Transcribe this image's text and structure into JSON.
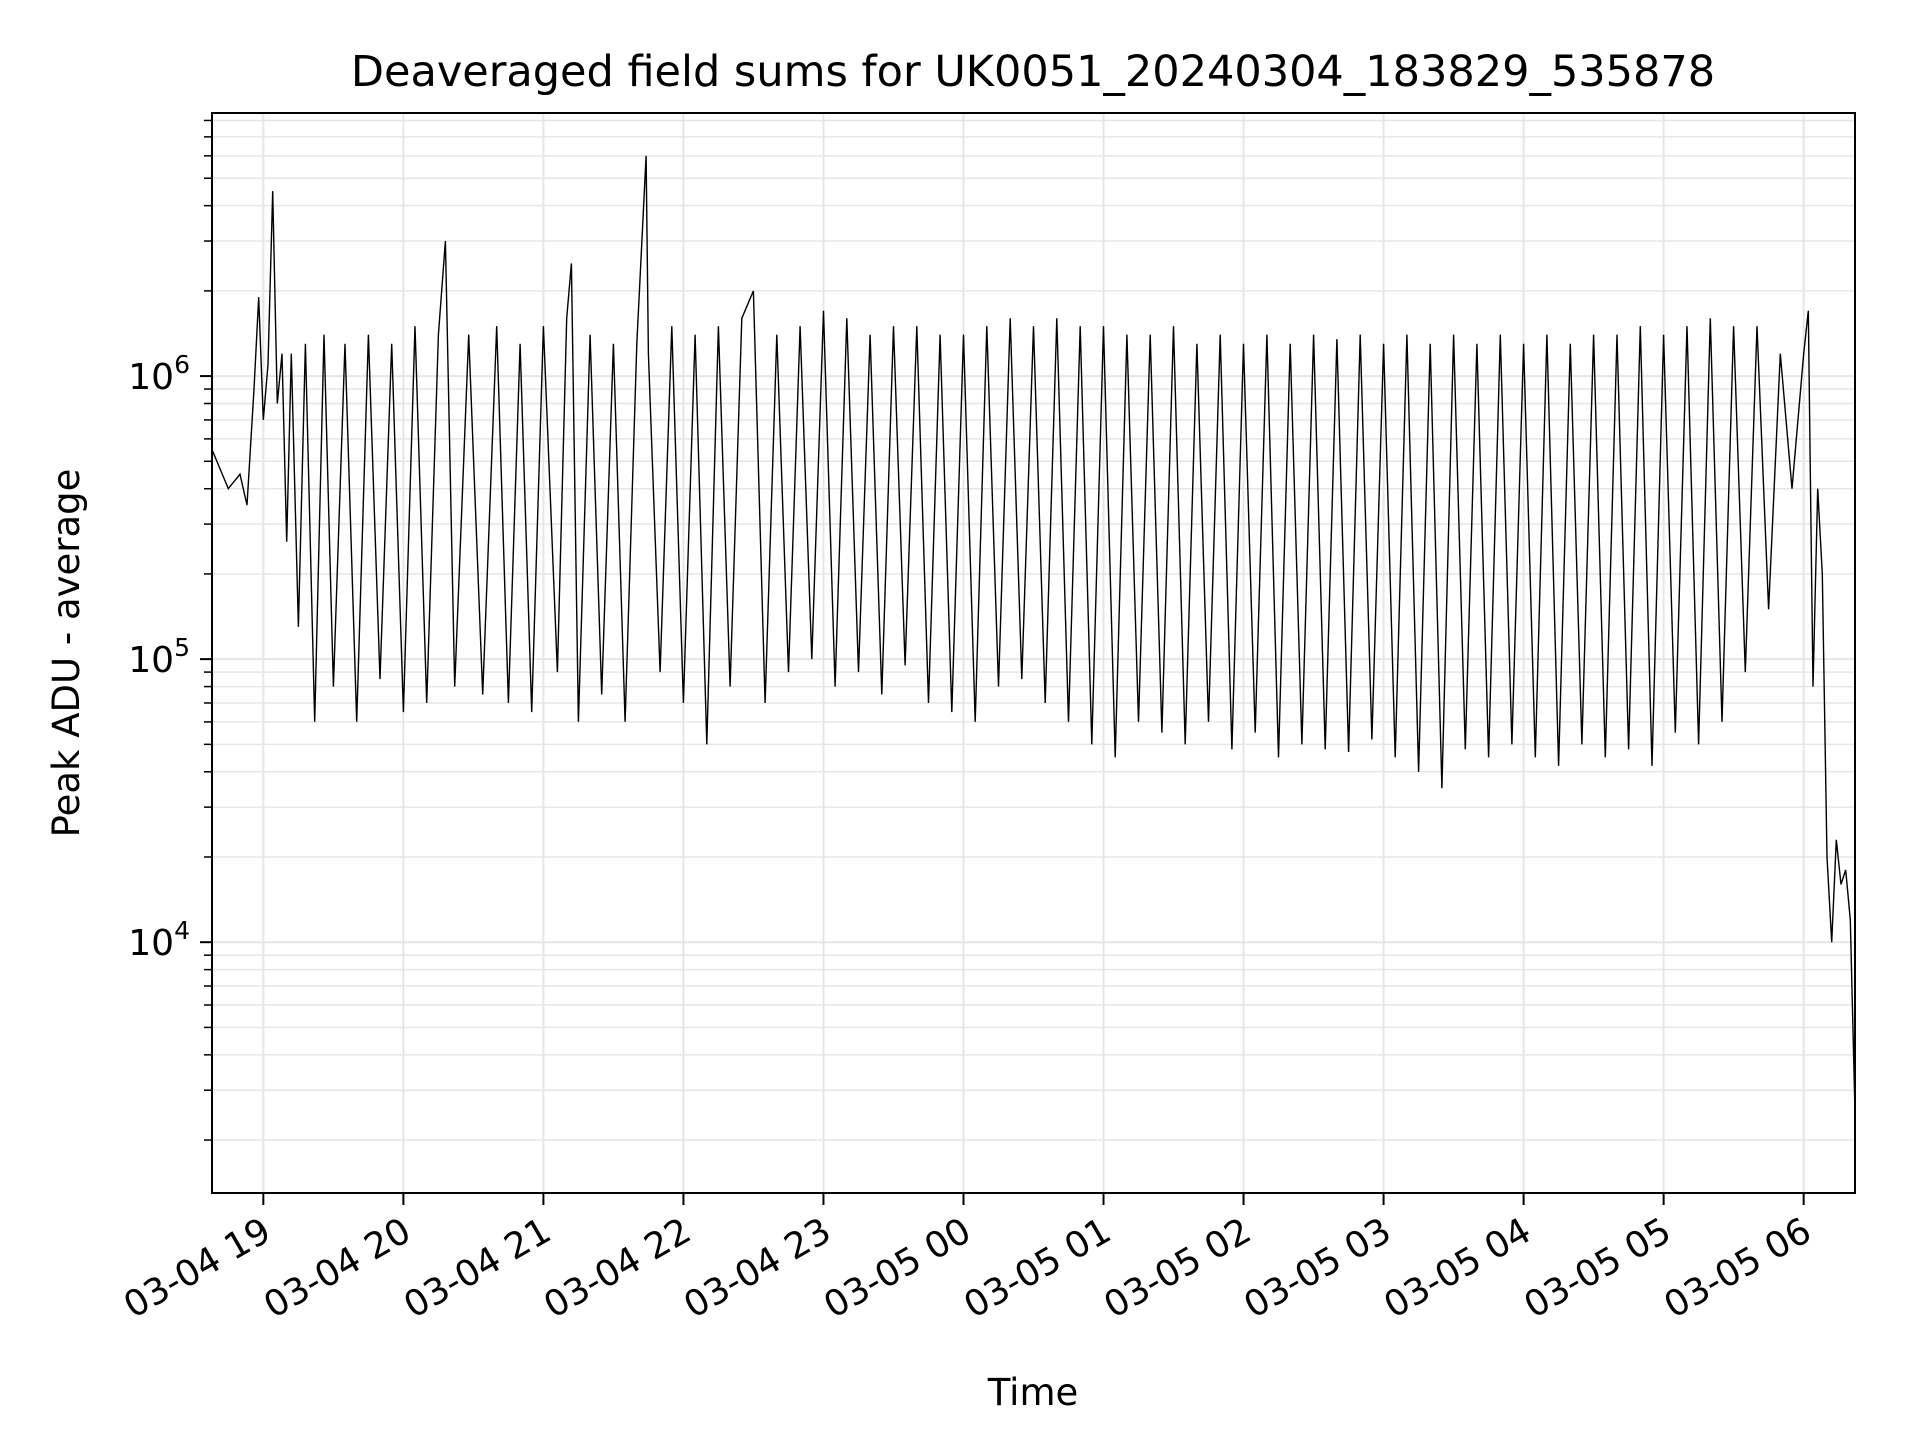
{
  "chart_data": {
    "type": "line",
    "title": "Deaveraged field sums for UK0051_20240304_183829_535878",
    "xlabel": "Time",
    "ylabel": "Peak ADU - average",
    "y_scale": "log",
    "ylim": [
      1300,
      8500000
    ],
    "xlim": [
      "2024-03-04 18:38",
      "2024-03-05 06:22"
    ],
    "grid": true,
    "legend": "none",
    "line_color": "#000000",
    "grid_color": "#e6e6e6",
    "x_ticks": [
      {
        "t": "2024-03-04 19:00",
        "label": "03-04 19"
      },
      {
        "t": "2024-03-04 20:00",
        "label": "03-04 20"
      },
      {
        "t": "2024-03-04 21:00",
        "label": "03-04 21"
      },
      {
        "t": "2024-03-04 22:00",
        "label": "03-04 22"
      },
      {
        "t": "2024-03-04 23:00",
        "label": "03-04 23"
      },
      {
        "t": "2024-03-05 00:00",
        "label": "03-05 00"
      },
      {
        "t": "2024-03-05 01:00",
        "label": "03-05 01"
      },
      {
        "t": "2024-03-05 02:00",
        "label": "03-05 02"
      },
      {
        "t": "2024-03-05 03:00",
        "label": "03-05 03"
      },
      {
        "t": "2024-03-05 04:00",
        "label": "03-05 04"
      },
      {
        "t": "2024-03-05 05:00",
        "label": "03-05 05"
      },
      {
        "t": "2024-03-05 06:00",
        "label": "03-05 06"
      }
    ],
    "y_ticks": [
      {
        "value": 10000,
        "base": "10",
        "exp": "4"
      },
      {
        "value": 100000,
        "base": "10",
        "exp": "5"
      },
      {
        "value": 1000000,
        "base": "10",
        "exp": "6"
      }
    ],
    "series": [
      {
        "x": [
          "2024-03-04 18:38",
          "2024-03-04 18:45",
          "2024-03-04 18:50",
          "2024-03-04 18:53",
          "2024-03-04 18:56",
          "2024-03-04 18:58",
          "2024-03-04 19:00",
          "2024-03-04 19:02",
          "2024-03-04 19:04",
          "2024-03-04 19:06",
          "2024-03-04 19:08",
          "2024-03-04 19:10",
          "2024-03-04 19:12",
          "2024-03-04 19:15",
          "2024-03-04 19:18",
          "2024-03-04 19:22",
          "2024-03-04 19:26",
          "2024-03-04 19:30",
          "2024-03-04 19:35",
          "2024-03-04 19:40",
          "2024-03-04 19:45",
          "2024-03-04 19:50",
          "2024-03-04 19:55",
          "2024-03-04 20:00",
          "2024-03-04 20:05",
          "2024-03-04 20:10",
          "2024-03-04 20:15",
          "2024-03-04 20:18",
          "2024-03-04 20:22",
          "2024-03-04 20:28",
          "2024-03-04 20:34",
          "2024-03-04 20:40",
          "2024-03-04 20:45",
          "2024-03-04 20:50",
          "2024-03-04 20:55",
          "2024-03-04 21:00",
          "2024-03-04 21:06",
          "2024-03-04 21:10",
          "2024-03-04 21:12",
          "2024-03-04 21:15",
          "2024-03-04 21:20",
          "2024-03-04 21:25",
          "2024-03-04 21:30",
          "2024-03-04 21:35",
          "2024-03-04 21:40",
          "2024-03-04 21:44",
          "2024-03-04 21:45",
          "2024-03-04 21:50",
          "2024-03-04 21:55",
          "2024-03-04 22:00",
          "2024-03-04 22:05",
          "2024-03-04 22:10",
          "2024-03-04 22:15",
          "2024-03-04 22:20",
          "2024-03-04 22:25",
          "2024-03-04 22:30",
          "2024-03-04 22:35",
          "2024-03-04 22:40",
          "2024-03-04 22:45",
          "2024-03-04 22:50",
          "2024-03-04 22:55",
          "2024-03-04 23:00",
          "2024-03-04 23:05",
          "2024-03-04 23:10",
          "2024-03-04 23:15",
          "2024-03-04 23:20",
          "2024-03-04 23:25",
          "2024-03-04 23:30",
          "2024-03-04 23:35",
          "2024-03-04 23:40",
          "2024-03-04 23:45",
          "2024-03-04 23:50",
          "2024-03-04 23:55",
          "2024-03-05 00:00",
          "2024-03-05 00:05",
          "2024-03-05 00:10",
          "2024-03-05 00:15",
          "2024-03-05 00:20",
          "2024-03-05 00:25",
          "2024-03-05 00:30",
          "2024-03-05 00:35",
          "2024-03-05 00:40",
          "2024-03-05 00:45",
          "2024-03-05 00:50",
          "2024-03-05 00:55",
          "2024-03-05 01:00",
          "2024-03-05 01:05",
          "2024-03-05 01:10",
          "2024-03-05 01:15",
          "2024-03-05 01:20",
          "2024-03-05 01:25",
          "2024-03-05 01:30",
          "2024-03-05 01:35",
          "2024-03-05 01:40",
          "2024-03-05 01:45",
          "2024-03-05 01:50",
          "2024-03-05 01:55",
          "2024-03-05 02:00",
          "2024-03-05 02:05",
          "2024-03-05 02:10",
          "2024-03-05 02:15",
          "2024-03-05 02:20",
          "2024-03-05 02:25",
          "2024-03-05 02:30",
          "2024-03-05 02:35",
          "2024-03-05 02:40",
          "2024-03-05 02:45",
          "2024-03-05 02:50",
          "2024-03-05 02:55",
          "2024-03-05 03:00",
          "2024-03-05 03:05",
          "2024-03-05 03:10",
          "2024-03-05 03:15",
          "2024-03-05 03:20",
          "2024-03-05 03:25",
          "2024-03-05 03:30",
          "2024-03-05 03:35",
          "2024-03-05 03:40",
          "2024-03-05 03:45",
          "2024-03-05 03:50",
          "2024-03-05 03:55",
          "2024-03-05 04:00",
          "2024-03-05 04:05",
          "2024-03-05 04:10",
          "2024-03-05 04:15",
          "2024-03-05 04:20",
          "2024-03-05 04:25",
          "2024-03-05 04:30",
          "2024-03-05 04:35",
          "2024-03-05 04:40",
          "2024-03-05 04:45",
          "2024-03-05 04:50",
          "2024-03-05 04:55",
          "2024-03-05 05:00",
          "2024-03-05 05:05",
          "2024-03-05 05:10",
          "2024-03-05 05:15",
          "2024-03-05 05:20",
          "2024-03-05 05:25",
          "2024-03-05 05:30",
          "2024-03-05 05:35",
          "2024-03-05 05:40",
          "2024-03-05 05:45",
          "2024-03-05 05:50",
          "2024-03-05 05:55",
          "2024-03-05 06:00",
          "2024-03-05 06:02",
          "2024-03-05 06:04",
          "2024-03-05 06:06",
          "2024-03-05 06:08",
          "2024-03-05 06:10",
          "2024-03-05 06:12",
          "2024-03-05 06:14",
          "2024-03-05 06:16",
          "2024-03-05 06:18",
          "2024-03-05 06:20",
          "2024-03-05 06:22"
        ],
        "y": [
          550000,
          400000,
          450000,
          350000,
          900000,
          1900000,
          700000,
          1100000,
          4500000,
          800000,
          1200000,
          260000,
          1200000,
          130000,
          1300000,
          60000,
          1400000,
          80000,
          1300000,
          60000,
          1400000,
          85000,
          1300000,
          65000,
          1500000,
          70000,
          1400000,
          3000000,
          80000,
          1400000,
          75000,
          1500000,
          70000,
          1300000,
          65000,
          1500000,
          90000,
          1600000,
          2500000,
          60000,
          1400000,
          75000,
          1300000,
          60000,
          1300000,
          6000000,
          1200000,
          90000,
          1500000,
          70000,
          1400000,
          50000,
          1500000,
          80000,
          1600000,
          2000000,
          70000,
          1400000,
          90000,
          1500000,
          100000,
          1700000,
          80000,
          1600000,
          90000,
          1400000,
          75000,
          1500000,
          95000,
          1500000,
          70000,
          1400000,
          65000,
          1400000,
          60000,
          1500000,
          80000,
          1600000,
          85000,
          1500000,
          70000,
          1600000,
          60000,
          1500000,
          50000,
          1500000,
          45000,
          1400000,
          60000,
          1400000,
          55000,
          1500000,
          50000,
          1300000,
          60000,
          1400000,
          48000,
          1300000,
          55000,
          1400000,
          45000,
          1300000,
          50000,
          1400000,
          48000,
          1350000,
          47000,
          1400000,
          52000,
          1300000,
          45000,
          1400000,
          40000,
          1300000,
          35000,
          1400000,
          48000,
          1300000,
          45000,
          1400000,
          50000,
          1300000,
          45000,
          1400000,
          42000,
          1300000,
          50000,
          1400000,
          45000,
          1400000,
          48000,
          1500000,
          42000,
          1400000,
          55000,
          1500000,
          50000,
          1600000,
          60000,
          1500000,
          90000,
          1500000,
          150000,
          1200000,
          400000,
          1200000,
          1700000,
          80000,
          400000,
          200000,
          20000,
          10000,
          23000,
          16000,
          18000,
          12000,
          2500
        ]
      }
    ]
  }
}
